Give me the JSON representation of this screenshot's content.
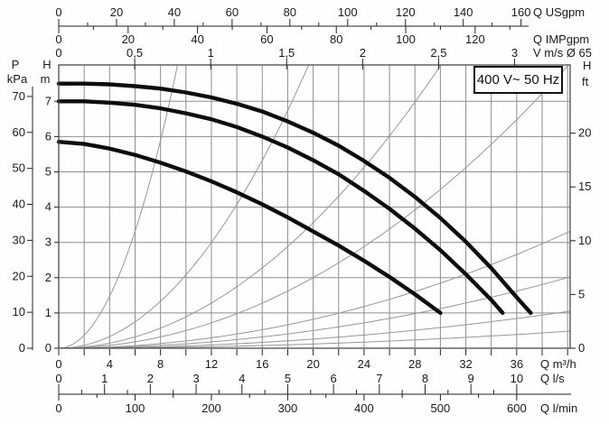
{
  "page": {
    "background": "#ffffff"
  },
  "chart_data": {
    "type": "line",
    "title": "",
    "voltage_label": "400 V~ 50 Hz",
    "q_max": 40.2,
    "h_max": 8.03,
    "grid": {
      "q_step": 2,
      "h_step": 1
    },
    "style": {
      "curve": "#0d0d0d",
      "grid": "#8e8e8e",
      "thin": "#979797",
      "border": "#4a4a4a",
      "axis": "#222222",
      "text": "#1a1a1a"
    },
    "pump_curves": [
      {
        "name": "curve-1-top",
        "points": [
          [
            0,
            7.5
          ],
          [
            2,
            7.5
          ],
          [
            4,
            7.48
          ],
          [
            6,
            7.43
          ],
          [
            8,
            7.36
          ],
          [
            10,
            7.25
          ],
          [
            12,
            7.11
          ],
          [
            14,
            6.93
          ],
          [
            16,
            6.71
          ],
          [
            18,
            6.43
          ],
          [
            20,
            6.11
          ],
          [
            22,
            5.74
          ],
          [
            24,
            5.31
          ],
          [
            26,
            4.83
          ],
          [
            28,
            4.29
          ],
          [
            30,
            3.69
          ],
          [
            32,
            3.02
          ],
          [
            34,
            2.27
          ],
          [
            36,
            1.44
          ],
          [
            37.1,
            1.0
          ]
        ]
      },
      {
        "name": "curve-2-middle",
        "points": [
          [
            0,
            7.0
          ],
          [
            2,
            7.0
          ],
          [
            4,
            6.96
          ],
          [
            6,
            6.9
          ],
          [
            8,
            6.8
          ],
          [
            10,
            6.66
          ],
          [
            12,
            6.49
          ],
          [
            14,
            6.27
          ],
          [
            16,
            6.0
          ],
          [
            18,
            5.69
          ],
          [
            20,
            5.33
          ],
          [
            22,
            4.93
          ],
          [
            24,
            4.46
          ],
          [
            26,
            3.95
          ],
          [
            28,
            3.39
          ],
          [
            30,
            2.78
          ],
          [
            32,
            2.1
          ],
          [
            34,
            1.37
          ],
          [
            34.9,
            1.0
          ]
        ]
      },
      {
        "name": "curve-3-bottom",
        "points": [
          [
            0,
            5.85
          ],
          [
            2,
            5.79
          ],
          [
            4,
            5.66
          ],
          [
            6,
            5.48
          ],
          [
            8,
            5.26
          ],
          [
            10,
            5.01
          ],
          [
            12,
            4.73
          ],
          [
            14,
            4.42
          ],
          [
            16,
            4.08
          ],
          [
            18,
            3.71
          ],
          [
            20,
            3.31
          ],
          [
            22,
            2.91
          ],
          [
            24,
            2.48
          ],
          [
            26,
            2.02
          ],
          [
            28,
            1.53
          ],
          [
            30,
            1.0
          ]
        ]
      }
    ],
    "system_parabolas_k": [
      0.092,
      0.0208,
      0.0089,
      0.005,
      0.00205,
      0.00125,
      0.00065,
      0.0003
    ],
    "axes": {
      "usgpm": {
        "label": "Q USgpm",
        "ticks": [
          0,
          20,
          40,
          60,
          80,
          100,
          120,
          140,
          160
        ],
        "minor": [
          10,
          30,
          50,
          70,
          90,
          110,
          130,
          150
        ],
        "to_m3h": 0.22712
      },
      "impgpm": {
        "label": "Q IMPgpm",
        "ticks": [
          0,
          20,
          40,
          60,
          80,
          100,
          120
        ],
        "minor": [
          10,
          30,
          50,
          70,
          90,
          110,
          130
        ],
        "to_m3h": 0.27276
      },
      "vms": {
        "label": "V m/s Ø 65",
        "labels": [
          "0",
          "0,5",
          "1",
          "1,5",
          "2",
          "2,5",
          "3"
        ],
        "values": [
          0,
          0.5,
          1,
          1.5,
          2,
          2.5,
          3
        ],
        "to_m3h": 11.945
      },
      "m3h": {
        "label": "Q m³/h",
        "ticks": [
          0,
          4,
          8,
          12,
          16,
          20,
          24,
          28,
          32,
          36
        ],
        "tick_values": [
          0,
          2,
          4,
          6,
          8,
          10,
          12,
          14,
          16,
          18,
          20,
          22,
          24,
          26,
          28,
          30,
          32,
          34,
          36,
          38,
          40
        ],
        "to_m3h": 1
      },
      "ls": {
        "label": "Q l/s",
        "ticks": [
          0,
          1,
          2,
          3,
          4,
          5,
          6,
          7,
          8,
          9,
          10
        ],
        "minor": [
          0.5,
          1.5,
          2.5,
          3.5,
          4.5,
          5.5,
          6.5,
          7.5,
          8.5,
          9.5
        ],
        "to_m3h": 3.6
      },
      "lmin": {
        "label": "Q l/min",
        "ticks": [
          0,
          100,
          200,
          300,
          400,
          500,
          600
        ],
        "minor": [
          50,
          150,
          250,
          350,
          450,
          550
        ],
        "to_m3h": 0.06
      },
      "kpa": {
        "header": [
          "P",
          "kPa"
        ],
        "ticks": [
          0,
          10,
          20,
          30,
          40,
          50,
          60,
          70
        ],
        "m_per_unit": 0.10197
      },
      "hm": {
        "header": [
          "H",
          "m"
        ],
        "ticks": [
          0,
          1,
          2,
          3,
          4,
          5,
          6,
          7
        ],
        "m_per_unit": 1
      },
      "hft": {
        "header": [
          "H",
          "ft"
        ],
        "ticks": [
          0,
          5,
          10,
          15,
          20
        ],
        "m_per_unit": 0.3048
      }
    }
  }
}
